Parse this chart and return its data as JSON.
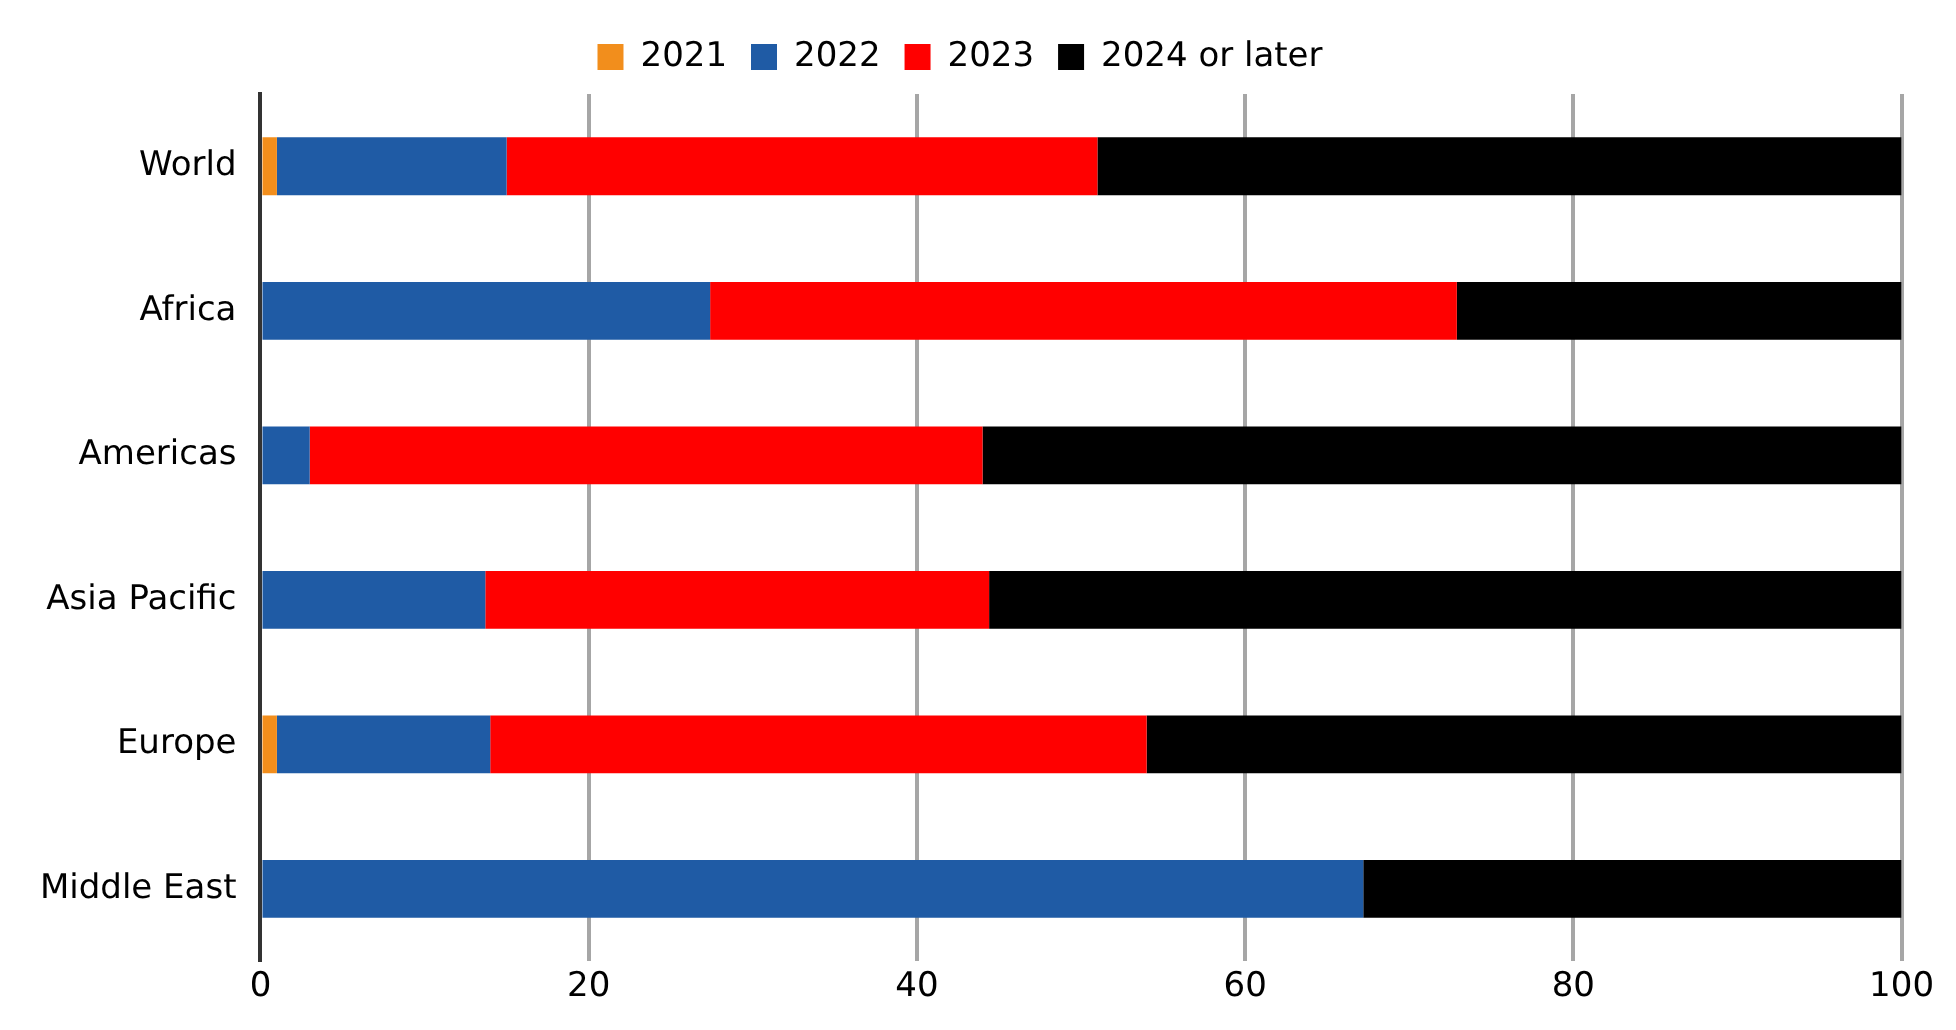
{
  "chart_data": {
    "type": "bar",
    "orientation": "horizontal",
    "stacked": true,
    "categories": [
      "World",
      "Africa",
      "Americas",
      "Asia Pacific",
      "Europe",
      "Middle East"
    ],
    "series": [
      {
        "name": "2021",
        "color": "#f28e1c",
        "values": [
          1,
          0,
          0,
          0,
          1,
          0
        ]
      },
      {
        "name": "2022",
        "color": "#1f5ba5",
        "values": [
          14,
          27.4,
          3,
          13.7,
          13,
          67.2
        ]
      },
      {
        "name": "2023",
        "color": "#ff0000",
        "values": [
          36,
          45.5,
          41,
          30.7,
          40,
          0
        ]
      },
      {
        "name": "2024 or later",
        "color": "#000000",
        "values": [
          49,
          27.1,
          56,
          55.6,
          46,
          32.8
        ]
      }
    ],
    "xlim": [
      0,
      100
    ],
    "xticks": [
      0,
      20,
      40,
      60,
      80,
      100
    ],
    "grid": "x",
    "legend": "top"
  }
}
